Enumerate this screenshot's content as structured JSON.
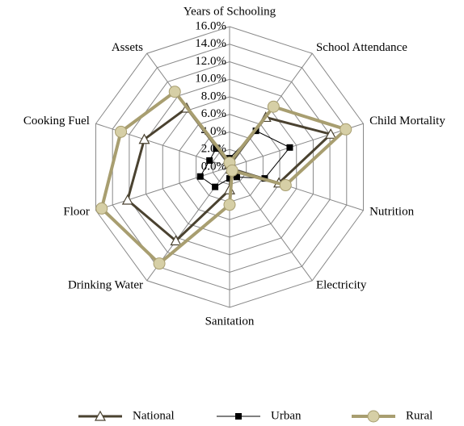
{
  "chart_data": {
    "type": "radar",
    "categories": [
      "Years of Schooling",
      "School Attendance",
      "Child Mortality",
      "Nutrition",
      "Electricity",
      "Sanitation",
      "Drinking Water",
      "Floor",
      "Cooking Fuel",
      "Assets"
    ],
    "series": [
      {
        "name": "National",
        "color": "#4a4230",
        "values": [
          0.3,
          7.0,
          12.1,
          5.9,
          0.3,
          2.6,
          10.4,
          12.2,
          10.2,
          8.3
        ]
      },
      {
        "name": "Urban",
        "color": "#000000",
        "values": [
          1.0,
          5.1,
          7.2,
          4.2,
          1.4,
          1.3,
          2.8,
          3.5,
          2.4,
          2.6
        ]
      },
      {
        "name": "Rural",
        "color": "#a89e70",
        "values": [
          0.5,
          8.5,
          13.9,
          6.7,
          0.5,
          4.3,
          13.6,
          15.3,
          13.0,
          10.6
        ]
      }
    ],
    "ylim": [
      0,
      16
    ],
    "yticks": [
      {
        "value": 0,
        "label": "0.0%"
      },
      {
        "value": 2,
        "label": "2.0%"
      },
      {
        "value": 4,
        "label": "4.0%"
      },
      {
        "value": 6,
        "label": "6.0%"
      },
      {
        "value": 8,
        "label": "8.0%"
      },
      {
        "value": 10,
        "label": "10.0%"
      },
      {
        "value": 12,
        "label": "12.0%"
      },
      {
        "value": 14,
        "label": "14.0%"
      },
      {
        "value": 16,
        "label": "16.0%"
      }
    ],
    "grid": true
  }
}
